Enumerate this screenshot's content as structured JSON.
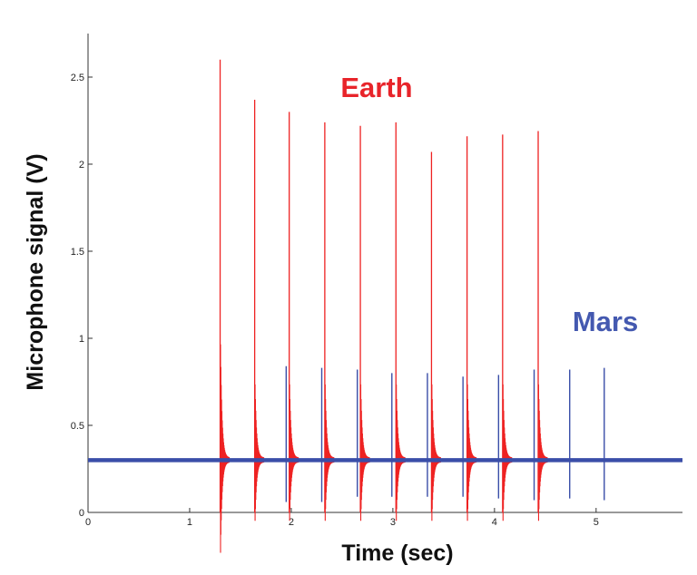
{
  "chart_data": {
    "type": "line",
    "xlabel": "Time (sec)",
    "ylabel": "Microphone signal (V)",
    "xlim": [
      0,
      5.85
    ],
    "ylim": [
      0,
      2.75
    ],
    "xticks": [
      0,
      1,
      2,
      3,
      4,
      5
    ],
    "yticks": [
      0,
      0.5,
      1,
      1.5,
      2,
      2.5
    ],
    "xtick_labels": [
      "0",
      "1",
      "2",
      "3",
      "4",
      "5"
    ],
    "ytick_labels": [
      "0",
      "0.5",
      "1",
      "1.5",
      "2",
      "2.5"
    ],
    "baseline_v": 0.3,
    "grid": false,
    "series": [
      {
        "name": "Earth",
        "color": "#ee2222",
        "label_color": "#e8242a",
        "impulse_times": [
          1.3,
          1.64,
          1.98,
          2.33,
          2.68,
          3.03,
          3.38,
          3.73,
          4.08,
          4.43
        ],
        "peak_values": [
          2.6,
          2.37,
          2.3,
          2.24,
          2.22,
          2.24,
          2.07,
          2.16,
          2.17,
          2.19
        ],
        "min_values": [
          0.0,
          0.0,
          0.0,
          0.0,
          0.0,
          0.0,
          0.0,
          0.0,
          0.0,
          0.0
        ]
      },
      {
        "name": "Mars",
        "color": "#3a4ea8",
        "label_color": "#4459b0",
        "impulse_times": [
          1.95,
          2.3,
          2.65,
          2.99,
          3.34,
          3.69,
          4.04,
          4.39,
          4.74,
          5.08
        ],
        "peak_values": [
          0.84,
          0.83,
          0.82,
          0.8,
          0.8,
          0.78,
          0.79,
          0.82,
          0.82,
          0.83
        ],
        "min_values": [
          0.06,
          0.06,
          0.09,
          0.09,
          0.09,
          0.09,
          0.08,
          0.07,
          0.08,
          0.07
        ]
      }
    ]
  }
}
